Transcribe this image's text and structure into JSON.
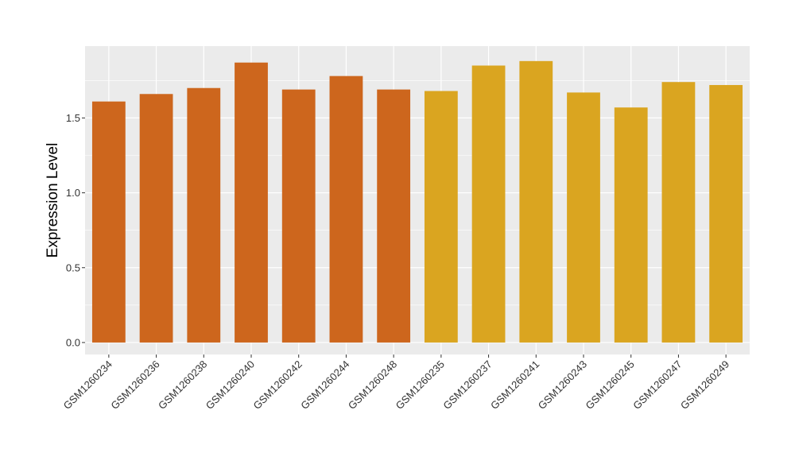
{
  "chart_data": {
    "type": "bar",
    "xlabel": "",
    "ylabel": "Expression Level",
    "ylim": [
      -0.08,
      1.98
    ],
    "yticks": [
      0.0,
      0.5,
      1.0,
      1.5
    ],
    "ytick_labels": [
      "0.0",
      "0.5",
      "1.0",
      "1.5"
    ],
    "grid": true,
    "categories": [
      "GSM1260234",
      "GSM1260236",
      "GSM1260238",
      "GSM1260240",
      "GSM1260242",
      "GSM1260244",
      "GSM1260248",
      "GSM1260235",
      "GSM1260237",
      "GSM1260241",
      "GSM1260243",
      "GSM1260245",
      "GSM1260247",
      "GSM1260249"
    ],
    "values": [
      1.61,
      1.66,
      1.7,
      1.87,
      1.69,
      1.78,
      1.69,
      1.68,
      1.85,
      1.88,
      1.67,
      1.57,
      1.74,
      1.72
    ],
    "bar_colors": [
      "#CD661D",
      "#CD661D",
      "#CD661D",
      "#CD661D",
      "#CD661D",
      "#CD661D",
      "#CD661D",
      "#DAA520",
      "#DAA520",
      "#DAA520",
      "#DAA520",
      "#DAA520",
      "#DAA520",
      "#DAA520"
    ]
  }
}
